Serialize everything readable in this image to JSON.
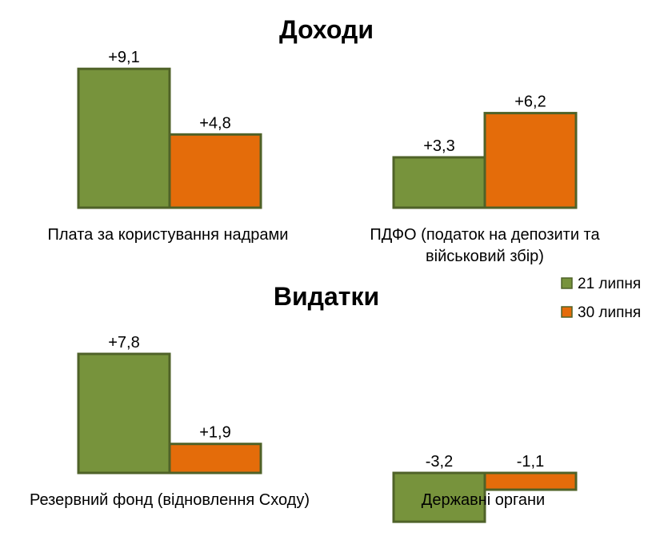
{
  "chart_data": {
    "type": "bar",
    "series": [
      {
        "name": "21 липня",
        "color": "#77933c",
        "border": "#4f6228"
      },
      {
        "name": "30 липня",
        "color": "#e46c0a",
        "border": "#4f6228"
      }
    ],
    "legend": {
      "placement": "right"
    },
    "sections": [
      {
        "title": "Доходи",
        "groups": [
          {
            "category": [
              "Плата за користування надрами"
            ],
            "values": [
              9.1,
              4.8
            ],
            "labels": [
              "+9,1",
              "+4,8"
            ]
          },
          {
            "category": [
              "ПДФО (податок на депозити та",
              "військовий збір)"
            ],
            "values": [
              3.3,
              6.2
            ],
            "labels": [
              "+3,3",
              "+6,2"
            ]
          }
        ]
      },
      {
        "title": "Видатки",
        "groups": [
          {
            "category": [
              "Резервний фонд (відновлення Сходу)"
            ],
            "values": [
              7.8,
              1.9
            ],
            "labels": [
              "+7,8",
              "+1,9"
            ]
          },
          {
            "category": [
              "Державні органи"
            ],
            "values": [
              -3.2,
              -1.1
            ],
            "labels": [
              "-3,2",
              "-1,1"
            ]
          }
        ]
      }
    ]
  }
}
